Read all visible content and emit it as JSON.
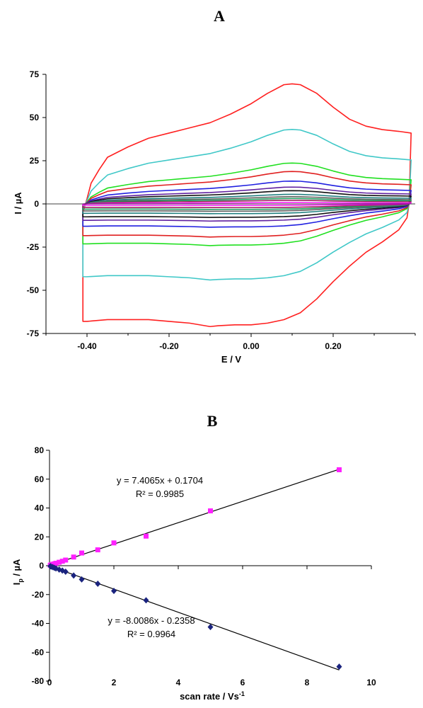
{
  "chart_data": [
    {
      "panel": "A",
      "type": "line",
      "xlabel": "E / V",
      "ylabel": "I / µA",
      "xlim": [
        -0.5,
        0.4
      ],
      "ylim": [
        -75,
        75
      ],
      "xticks": [
        -0.4,
        -0.2,
        0.0,
        0.2
      ],
      "xtick_labels": [
        "-0.40",
        "-0.20",
        "0.00",
        "0.20"
      ],
      "yticks": [
        -75,
        -50,
        -25,
        0,
        25,
        50,
        75
      ],
      "ytick_labels": [
        "-75",
        "-50",
        "-25",
        "0",
        "25",
        "50",
        "75"
      ],
      "grid": false,
      "series": [
        {
          "color": "#ff2020",
          "scale": 1.0,
          "anodic": [
            [
              -0.41,
              -5
            ],
            [
              -0.4,
              3
            ],
            [
              -0.39,
              12
            ],
            [
              -0.37,
              20
            ],
            [
              -0.35,
              27
            ],
            [
              -0.3,
              33
            ],
            [
              -0.25,
              38
            ],
            [
              -0.2,
              41
            ],
            [
              -0.15,
              44
            ],
            [
              -0.1,
              47
            ],
            [
              -0.05,
              52
            ],
            [
              0.0,
              58
            ],
            [
              0.04,
              64
            ],
            [
              0.08,
              69
            ],
            [
              0.1,
              69.5
            ],
            [
              0.12,
              69
            ],
            [
              0.16,
              64
            ],
            [
              0.2,
              56
            ],
            [
              0.24,
              49
            ],
            [
              0.28,
              45
            ],
            [
              0.32,
              43
            ],
            [
              0.36,
              42
            ]
          ],
          "cathodic": [
            [
              0.39,
              41
            ],
            [
              0.385,
              0
            ],
            [
              0.38,
              -8
            ],
            [
              0.36,
              -15
            ],
            [
              0.32,
              -22
            ],
            [
              0.28,
              -28
            ],
            [
              0.24,
              -36
            ],
            [
              0.2,
              -45
            ],
            [
              0.16,
              -55
            ],
            [
              0.12,
              -63
            ],
            [
              0.08,
              -67
            ],
            [
              0.04,
              -69
            ],
            [
              0.0,
              -70
            ],
            [
              -0.04,
              -70
            ],
            [
              -0.08,
              -70.5
            ],
            [
              -0.1,
              -71
            ],
            [
              -0.15,
              -69
            ],
            [
              -0.2,
              -68
            ],
            [
              -0.25,
              -67
            ],
            [
              -0.3,
              -67
            ],
            [
              -0.35,
              -67
            ],
            [
              -0.4,
              -68
            ],
            [
              -0.41,
              -68
            ],
            [
              -0.41,
              -5
            ]
          ]
        },
        {
          "color": "#40c8c8",
          "scale": 0.62
        },
        {
          "color": "#20e020",
          "scale": 0.34
        },
        {
          "color": "#e02020",
          "scale": 0.27
        },
        {
          "color": "#2020e0",
          "scale": 0.19
        },
        {
          "color": "#6020a0",
          "scale": 0.14
        },
        {
          "color": "#101010",
          "scale": 0.11
        },
        {
          "color": "#208080",
          "scale": 0.08
        },
        {
          "color": "#606060",
          "scale": 0.06
        },
        {
          "color": "#20a060",
          "scale": 0.045
        },
        {
          "color": "#a02060",
          "scale": 0.03
        },
        {
          "color": "#ff20ff",
          "scale": 0.012
        }
      ]
    },
    {
      "panel": "B",
      "type": "scatter",
      "xlabel": "scan rate / Vs",
      "xlabel_sup": "-1",
      "ylabel_main": "I",
      "ylabel_sub": "p",
      "ylabel_rest": " / µA",
      "xlim": [
        0,
        10
      ],
      "ylim": [
        -80,
        80
      ],
      "xticks": [
        0,
        2,
        4,
        6,
        8,
        10
      ],
      "xtick_labels": [
        "0",
        "2",
        "4",
        "6",
        "8",
        "10"
      ],
      "yticks": [
        -80,
        -60,
        -40,
        -20,
        0,
        20,
        40,
        60,
        80
      ],
      "ytick_labels": [
        "-80",
        "-60",
        "-40",
        "-20",
        "0",
        "20",
        "40",
        "60",
        "80"
      ],
      "grid": false,
      "series": [
        {
          "marker": "square",
          "color": "#ff20ff",
          "x": [
            0.025,
            0.05,
            0.1,
            0.15,
            0.2,
            0.3,
            0.4,
            0.5,
            0.75,
            1.0,
            1.5,
            2.0,
            3.0,
            5.0,
            9.0
          ],
          "y": [
            0.3,
            0.6,
            1.0,
            1.3,
            1.7,
            2.4,
            3.1,
            3.9,
            6.0,
            8.8,
            11.0,
            15.8,
            20.5,
            38.0,
            66.5
          ],
          "fit": {
            "slope": 7.4065,
            "intercept": 0.1704
          },
          "equation": "y = 7.4065x + 0.1704",
          "r2": "R² = 0.9985"
        },
        {
          "marker": "diamond",
          "color": "#1a237e",
          "x": [
            0.025,
            0.05,
            0.1,
            0.15,
            0.2,
            0.3,
            0.4,
            0.5,
            0.75,
            1.0,
            1.5,
            2.0,
            3.0,
            5.0,
            9.0
          ],
          "y": [
            -0.3,
            -0.6,
            -1.0,
            -1.5,
            -1.9,
            -2.7,
            -3.4,
            -4.2,
            -6.8,
            -9.5,
            -12.5,
            -17.5,
            -24.0,
            -42.5,
            -70.0
          ],
          "fit": {
            "slope": -8.0086,
            "intercept": -0.2358
          },
          "equation": "y = -8.0086x - 0.2358",
          "r2": "R² = 0.9964"
        }
      ]
    }
  ]
}
